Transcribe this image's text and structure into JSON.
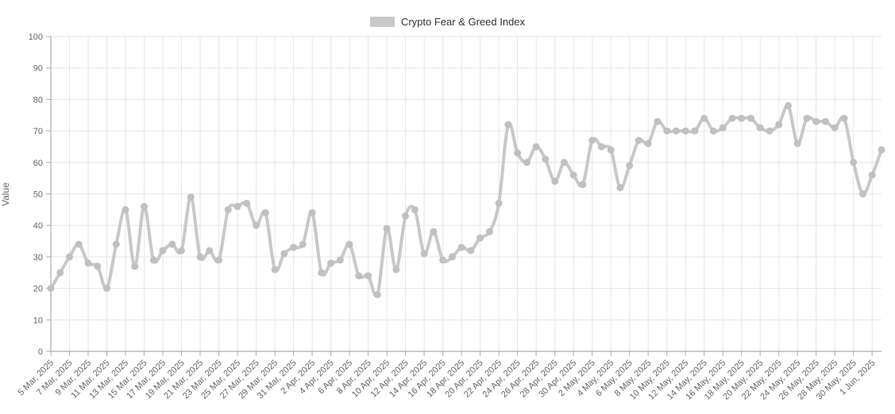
{
  "chart_data": {
    "type": "line",
    "title": "",
    "legend_label": "Crypto Fear & Greed Index",
    "legend_position": "top-center",
    "ylabel": "Value",
    "xlabel": "",
    "ylim": [
      0,
      100
    ],
    "yticks": [
      0,
      10,
      20,
      30,
      40,
      50,
      60,
      70,
      80,
      90,
      100
    ],
    "grid": true,
    "xtick_every": 2,
    "colors": {
      "line": "#c8c8c8",
      "marker": "#c0c0c0",
      "gridline": "#e6e6e6",
      "axis_line": "#999999",
      "tick_mark": "#adadad",
      "tick_label": "#666666",
      "legend_text": "#333333",
      "legend_swatch": "#c9c9c9",
      "background": "#ffffff"
    },
    "x": [
      "5 Mar, 2025",
      "6 Mar, 2025",
      "7 Mar, 2025",
      "8 Mar, 2025",
      "9 Mar, 2025",
      "10 Mar, 2025",
      "11 Mar, 2025",
      "12 Mar, 2025",
      "13 Mar, 2025",
      "14 Mar, 2025",
      "15 Mar, 2025",
      "16 Mar, 2025",
      "17 Mar, 2025",
      "18 Mar, 2025",
      "19 Mar, 2025",
      "20 Mar, 2025",
      "21 Mar, 2025",
      "22 Mar, 2025",
      "23 Mar, 2025",
      "24 Mar, 2025",
      "25 Mar, 2025",
      "26 Mar, 2025",
      "27 Mar, 2025",
      "28 Mar, 2025",
      "29 Mar, 2025",
      "30 Mar, 2025",
      "31 Mar, 2025",
      "1 Apr, 2025",
      "2 Apr, 2025",
      "3 Apr, 2025",
      "4 Apr, 2025",
      "5 Apr, 2025",
      "6 Apr, 2025",
      "7 Apr, 2025",
      "8 Apr, 2025",
      "9 Apr, 2025",
      "10 Apr, 2025",
      "11 Apr, 2025",
      "12 Apr, 2025",
      "13 Apr, 2025",
      "14 Apr, 2025",
      "15 Apr, 2025",
      "16 Apr, 2025",
      "17 Apr, 2025",
      "18 Apr, 2025",
      "19 Apr, 2025",
      "20 Apr, 2025",
      "21 Apr, 2025",
      "22 Apr, 2025",
      "23 Apr, 2025",
      "24 Apr, 2025",
      "25 Apr, 2025",
      "26 Apr, 2025",
      "27 Apr, 2025",
      "28 Apr, 2025",
      "29 Apr, 2025",
      "30 Apr, 2025",
      "1 May, 2025",
      "2 May, 2025",
      "3 May, 2025",
      "4 May, 2025",
      "5 May, 2025",
      "6 May, 2025",
      "7 May, 2025",
      "8 May, 2025",
      "9 May, 2025",
      "10 May, 2025",
      "11 May, 2025",
      "12 May, 2025",
      "13 May, 2025",
      "14 May, 2025",
      "15 May, 2025",
      "16 May, 2025",
      "17 May, 2025",
      "18 May, 2025",
      "19 May, 2025",
      "20 May, 2025",
      "21 May, 2025",
      "22 May, 2025",
      "23 May, 2025",
      "24 May, 2025",
      "25 May, 2025",
      "26 May, 2025",
      "27 May, 2025",
      "28 May, 2025",
      "29 May, 2025",
      "30 May, 2025",
      "31 May, 2025",
      "1 Jun, 2025",
      "2 Jun, 2025"
    ],
    "values": [
      20,
      25,
      30,
      34,
      28,
      27,
      20,
      34,
      45,
      27,
      46,
      29,
      32,
      34,
      32,
      49,
      30,
      32,
      29,
      45,
      46,
      47,
      40,
      44,
      26,
      31,
      33,
      34,
      44,
      25,
      28,
      29,
      34,
      24,
      24,
      18,
      39,
      26,
      43,
      45,
      31,
      38,
      29,
      30,
      33,
      32,
      36,
      38,
      47,
      72,
      63,
      60,
      65,
      61,
      54,
      60,
      56,
      53,
      67,
      65,
      64,
      52,
      59,
      67,
      66,
      73,
      70,
      70,
      70,
      70,
      74,
      70,
      71,
      74,
      74,
      74,
      71,
      70,
      72,
      78,
      66,
      74,
      73,
      73,
      71,
      74,
      60,
      50,
      56,
      64
    ],
    "series": [
      {
        "name": "Crypto Fear & Greed Index"
      }
    ]
  }
}
